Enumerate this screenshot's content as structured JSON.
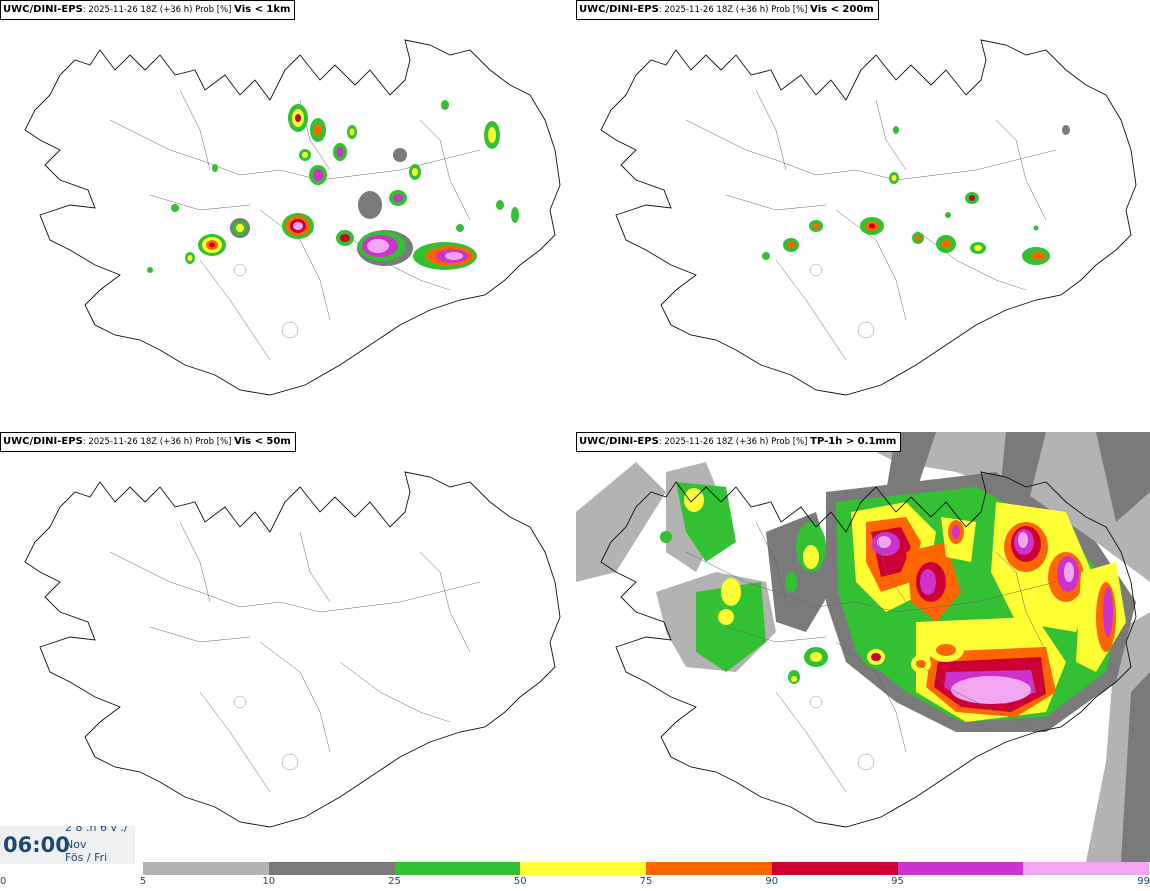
{
  "panels": [
    {
      "model": "UWC/DINI-EPS",
      "meta": ": 2025-11-26 18Z (+36 h) Prob [%] ",
      "variable": "Vis < 1km"
    },
    {
      "model": "UWC/DINI-EPS",
      "meta": ": 2025-11-26 18Z (+36 h) Prob [%] ",
      "variable": "Vis < 200m"
    },
    {
      "model": "UWC/DINI-EPS",
      "meta": ": 2025-11-26 18Z (+36 h) Prob [%] ",
      "variable": "Vis < 50m"
    },
    {
      "model": "UWC/DINI-EPS",
      "meta": ": 2025-11-26 18Z (+36 h) Prob [%] ",
      "variable": "TP-1h > 0.1mm"
    }
  ],
  "timebox": {
    "time": "06:00",
    "day": "2 8 .n 6 v ./",
    "month": "Nov",
    "weekday": "Fös / Fri"
  },
  "legend": {
    "ticks": [
      "0",
      "5",
      "10",
      "25",
      "50",
      "75",
      "90",
      "95",
      "99"
    ],
    "colors": [
      "#b3b3b3",
      "#7a7a7a",
      "#33c033",
      "#ffff33",
      "#ff6600",
      "#cc0033",
      "#cc33cc",
      "#f2a6f2"
    ]
  }
}
